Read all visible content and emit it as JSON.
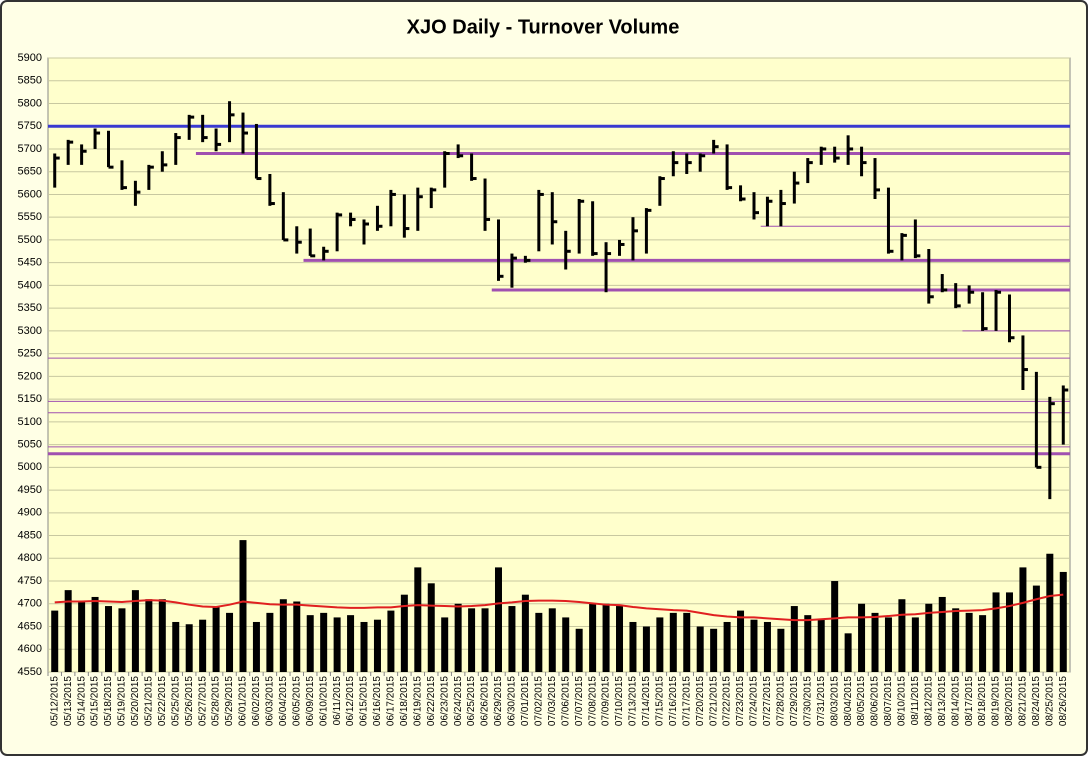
{
  "chart_data": {
    "type": "ohlc",
    "title": "XJO Daily - Turnover Volume",
    "categories": [
      "05/12/2015",
      "05/13/2015",
      "05/14/2015",
      "05/15/2015",
      "05/18/2015",
      "05/19/2015",
      "05/20/2015",
      "05/21/2015",
      "05/22/2015",
      "05/25/2015",
      "05/26/2015",
      "05/27/2015",
      "05/28/2015",
      "05/29/2015",
      "06/01/2015",
      "06/02/2015",
      "06/03/2015",
      "06/04/2015",
      "06/05/2015",
      "06/09/2015",
      "06/10/2015",
      "06/11/2015",
      "06/12/2015",
      "06/15/2015",
      "06/16/2015",
      "06/17/2015",
      "06/18/2015",
      "06/19/2015",
      "06/22/2015",
      "06/23/2015",
      "06/24/2015",
      "06/25/2015",
      "06/26/2015",
      "06/29/2015",
      "06/30/2015",
      "07/01/2015",
      "07/02/2015",
      "07/03/2015",
      "07/06/2015",
      "07/07/2015",
      "07/08/2015",
      "07/09/2015",
      "07/10/2015",
      "07/13/2015",
      "07/14/2015",
      "07/15/2015",
      "07/16/2015",
      "07/17/2015",
      "07/20/2015",
      "07/21/2015",
      "07/22/2015",
      "07/23/2015",
      "07/24/2015",
      "07/27/2015",
      "07/28/2015",
      "07/29/2015",
      "07/30/2015",
      "07/31/2015",
      "08/03/2015",
      "08/04/2015",
      "08/05/2015",
      "08/06/2015",
      "08/07/2015",
      "08/10/2015",
      "08/11/2015",
      "08/12/2015",
      "08/13/2015",
      "08/14/2015",
      "08/17/2015",
      "08/18/2015",
      "08/19/2015",
      "08/20/2015",
      "08/21/2015",
      "08/24/2015",
      "08/25/2015",
      "08/26/2015"
    ],
    "high": [
      5690,
      5720,
      5710,
      5745,
      5740,
      5675,
      5630,
      5665,
      5695,
      5735,
      5775,
      5775,
      5745,
      5805,
      5780,
      5755,
      5645,
      5605,
      5530,
      5525,
      5485,
      5560,
      5560,
      5545,
      5575,
      5610,
      5600,
      5615,
      5615,
      5695,
      5710,
      5690,
      5635,
      5545,
      5470,
      5465,
      5610,
      5605,
      5520,
      5590,
      5585,
      5495,
      5500,
      5550,
      5570,
      5640,
      5695,
      5690,
      5690,
      5720,
      5710,
      5620,
      5605,
      5595,
      5610,
      5650,
      5680,
      5705,
      5705,
      5730,
      5705,
      5680,
      5615,
      5515,
      5545,
      5480,
      5425,
      5405,
      5400,
      5385,
      5390,
      5380,
      5290,
      5210,
      5155,
      5180
    ],
    "low": [
      5615,
      5665,
      5665,
      5700,
      5660,
      5610,
      5575,
      5610,
      5650,
      5665,
      5720,
      5715,
      5695,
      5715,
      5690,
      5635,
      5575,
      5500,
      5470,
      5465,
      5455,
      5475,
      5530,
      5490,
      5520,
      5530,
      5505,
      5520,
      5570,
      5615,
      5680,
      5630,
      5520,
      5410,
      5395,
      5450,
      5475,
      5490,
      5435,
      5470,
      5465,
      5385,
      5465,
      5455,
      5470,
      5575,
      5640,
      5645,
      5650,
      5690,
      5610,
      5585,
      5545,
      5530,
      5530,
      5580,
      5625,
      5665,
      5670,
      5665,
      5640,
      5590,
      5470,
      5455,
      5460,
      5360,
      5385,
      5350,
      5360,
      5300,
      5300,
      5275,
      5170,
      5000,
      4930,
      5050
    ],
    "close": [
      5680,
      5715,
      5695,
      5735,
      5660,
      5615,
      5605,
      5660,
      5665,
      5725,
      5770,
      5725,
      5710,
      5775,
      5735,
      5635,
      5580,
      5500,
      5495,
      5465,
      5475,
      5555,
      5545,
      5535,
      5530,
      5600,
      5525,
      5595,
      5610,
      5690,
      5685,
      5635,
      5545,
      5420,
      5460,
      5455,
      5600,
      5540,
      5475,
      5585,
      5470,
      5470,
      5490,
      5520,
      5565,
      5635,
      5670,
      5670,
      5685,
      5705,
      5615,
      5590,
      5560,
      5585,
      5580,
      5625,
      5670,
      5700,
      5680,
      5700,
      5670,
      5610,
      5475,
      5510,
      5465,
      5375,
      5390,
      5355,
      5385,
      5305,
      5385,
      5285,
      5215,
      5000,
      5140,
      5170
    ],
    "volume": [
      4685,
      4730,
      4705,
      4715,
      4695,
      4690,
      4730,
      4710,
      4710,
      4660,
      4655,
      4665,
      4695,
      4680,
      4840,
      4660,
      4680,
      4710,
      4705,
      4675,
      4680,
      4670,
      4675,
      4660,
      4665,
      4685,
      4720,
      4780,
      4745,
      4670,
      4700,
      4690,
      4690,
      4780,
      4695,
      4720,
      4680,
      4690,
      4670,
      4645,
      4700,
      4700,
      4695,
      4660,
      4650,
      4670,
      4680,
      4680,
      4650,
      4645,
      4660,
      4685,
      4665,
      4660,
      4645,
      4695,
      4675,
      4665,
      4750,
      4635,
      4700,
      4680,
      4670,
      4710,
      4670,
      4700,
      4715,
      4690,
      4680,
      4675,
      4725,
      4725,
      4780,
      4740,
      4810,
      4770
    ],
    "moving_average": [
      4703,
      4705,
      4705,
      4706,
      4705,
      4704,
      4706,
      4708,
      4707,
      4703,
      4698,
      4694,
      4693,
      4698,
      4705,
      4702,
      4699,
      4698,
      4698,
      4696,
      4694,
      4692,
      4691,
      4691,
      4692,
      4692,
      4695,
      4697,
      4696,
      4695,
      4694,
      4695,
      4697,
      4701,
      4703,
      4706,
      4707,
      4707,
      4706,
      4704,
      4701,
      4698,
      4697,
      4693,
      4690,
      4688,
      4686,
      4685,
      4680,
      4675,
      4672,
      4670,
      4670,
      4668,
      4666,
      4664,
      4664,
      4666,
      4668,
      4670,
      4670,
      4671,
      4673,
      4676,
      4677,
      4680,
      4682,
      4684,
      4685,
      4686,
      4690,
      4695,
      4702,
      4710,
      4717,
      4720
    ],
    "bar_color": "#000000",
    "volume_color": "#000000",
    "ma_color": "#e02020",
    "levels": [
      {
        "value": 5750,
        "color": "#3a3ad0",
        "weight": "thick",
        "from": "05/12/2015"
      },
      {
        "value": 5690,
        "color": "#a050b0",
        "weight": "thick",
        "from": "05/27/2015"
      },
      {
        "value": 5530,
        "color": "#a050b0",
        "weight": "thin",
        "from": "07/27/2015"
      },
      {
        "value": 5455,
        "color": "#a050b0",
        "weight": "thick",
        "from": "06/09/2015"
      },
      {
        "value": 5390,
        "color": "#a050b0",
        "weight": "thick",
        "from": "06/29/2015"
      },
      {
        "value": 5300,
        "color": "#a050b0",
        "weight": "thin",
        "from": "08/17/2015"
      },
      {
        "value": 5240,
        "color": "#a050b0",
        "weight": "thin",
        "from": "05/12/2015"
      },
      {
        "value": 5145,
        "color": "#a050b0",
        "weight": "thin",
        "from": "05/12/2015"
      },
      {
        "value": 5120,
        "color": "#a050b0",
        "weight": "thin",
        "from": "05/12/2015"
      },
      {
        "value": 5045,
        "color": "#a050b0",
        "weight": "thin",
        "from": "05/12/2015"
      },
      {
        "value": 5030,
        "color": "#a050b0",
        "weight": "thick",
        "from": "05/12/2015"
      }
    ],
    "ylim": [
      4550,
      5900
    ],
    "yticks": [
      4550,
      4600,
      4650,
      4700,
      4750,
      4800,
      4850,
      4900,
      4950,
      5000,
      5050,
      5100,
      5150,
      5200,
      5250,
      5300,
      5350,
      5400,
      5450,
      5500,
      5550,
      5600,
      5650,
      5700,
      5750,
      5800,
      5850,
      5900
    ],
    "grid": true,
    "plot_background": "#ffffcc",
    "page_background": "#ffffe6"
  }
}
